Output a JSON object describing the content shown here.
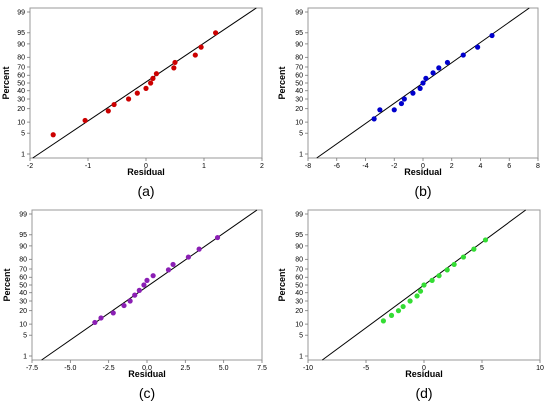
{
  "chart_data": [
    {
      "type": "scatter",
      "panel_label": "(a)",
      "color": "#cc0000",
      "xlabel": "Residual",
      "ylabel": "Percent",
      "xlim": [
        -2,
        2
      ],
      "x_ticks": [
        -2,
        -1,
        0,
        1,
        2
      ],
      "x_tick_labels": [
        "-2",
        "-1",
        "0",
        "1",
        "2"
      ],
      "y_ticks": [
        1,
        5,
        10,
        20,
        30,
        40,
        50,
        60,
        70,
        80,
        90,
        95,
        99
      ],
      "y_tick_labels": [
        "1",
        "5",
        "10",
        "20",
        "30",
        "40",
        "50",
        "60",
        "70",
        "80",
        "90",
        "95",
        "99"
      ],
      "y_scale": "normal-probability",
      "fit_line": {
        "percent_low": 1,
        "x_low": -1.85,
        "percent_high": 99,
        "x_high": 1.8
      },
      "points": [
        {
          "x": -1.6,
          "y": 4.5
        },
        {
          "x": -1.05,
          "y": 11
        },
        {
          "x": -0.65,
          "y": 18
        },
        {
          "x": -0.55,
          "y": 24
        },
        {
          "x": -0.3,
          "y": 30
        },
        {
          "x": -0.15,
          "y": 37
        },
        {
          "x": 0.0,
          "y": 43
        },
        {
          "x": 0.08,
          "y": 50
        },
        {
          "x": 0.12,
          "y": 56
        },
        {
          "x": 0.18,
          "y": 62
        },
        {
          "x": 0.48,
          "y": 69
        },
        {
          "x": 0.5,
          "y": 75
        },
        {
          "x": 0.85,
          "y": 82
        },
        {
          "x": 0.95,
          "y": 88
        },
        {
          "x": 1.2,
          "y": 95
        }
      ]
    },
    {
      "type": "scatter",
      "panel_label": "(b)",
      "color": "#0000cc",
      "xlabel": "Residual",
      "ylabel": "Percent",
      "xlim": [
        -8,
        8
      ],
      "x_ticks": [
        -8,
        -6,
        -4,
        -2,
        0,
        2,
        4,
        6,
        8
      ],
      "x_tick_labels": [
        "-8",
        "-6",
        "-4",
        "-2",
        "0",
        "2",
        "4",
        "6",
        "8"
      ],
      "y_ticks": [
        1,
        5,
        10,
        20,
        30,
        40,
        50,
        60,
        70,
        80,
        90,
        95,
        99
      ],
      "y_tick_labels": [
        "1",
        "5",
        "10",
        "20",
        "30",
        "40",
        "50",
        "60",
        "70",
        "80",
        "90",
        "95",
        "99"
      ],
      "y_scale": "normal-probability",
      "fit_line": {
        "percent_low": 1,
        "x_low": -7.0,
        "percent_high": 99,
        "x_high": 7.0
      },
      "points": [
        {
          "x": -3.4,
          "y": 12
        },
        {
          "x": -3.0,
          "y": 19
        },
        {
          "x": -2.0,
          "y": 19
        },
        {
          "x": -1.5,
          "y": 25
        },
        {
          "x": -1.3,
          "y": 30
        },
        {
          "x": -0.7,
          "y": 37
        },
        {
          "x": -0.2,
          "y": 43
        },
        {
          "x": 0.0,
          "y": 50
        },
        {
          "x": 0.2,
          "y": 56
        },
        {
          "x": 0.7,
          "y": 63
        },
        {
          "x": 1.1,
          "y": 69
        },
        {
          "x": 1.7,
          "y": 75
        },
        {
          "x": 2.8,
          "y": 82
        },
        {
          "x": 3.8,
          "y": 88
        },
        {
          "x": 4.8,
          "y": 94
        }
      ]
    },
    {
      "type": "scatter",
      "panel_label": "(c)",
      "color": "#8b1fb4",
      "xlabel": "Residual",
      "ylabel": "Percent",
      "xlim": [
        -7.5,
        7.5
      ],
      "x_ticks": [
        -7.5,
        -5.0,
        -2.5,
        0.0,
        2.5,
        5.0,
        7.5
      ],
      "x_tick_labels": [
        "-7.5",
        "-5.0",
        "-2.5",
        "0.0",
        "2.5",
        "5.0",
        "7.5"
      ],
      "y_ticks": [
        1,
        5,
        10,
        20,
        30,
        40,
        50,
        60,
        70,
        80,
        90,
        95,
        99
      ],
      "y_tick_labels": [
        "1",
        "5",
        "10",
        "20",
        "30",
        "40",
        "50",
        "60",
        "70",
        "80",
        "90",
        "95",
        "99"
      ],
      "y_scale": "normal-probability",
      "fit_line": {
        "percent_low": 1,
        "x_low": -6.5,
        "percent_high": 99,
        "x_high": 6.8
      },
      "points": [
        {
          "x": -3.4,
          "y": 11
        },
        {
          "x": -3.0,
          "y": 14
        },
        {
          "x": -2.2,
          "y": 18
        },
        {
          "x": -1.5,
          "y": 25
        },
        {
          "x": -1.1,
          "y": 30
        },
        {
          "x": -0.8,
          "y": 37
        },
        {
          "x": -0.5,
          "y": 43
        },
        {
          "x": -0.2,
          "y": 50
        },
        {
          "x": 0.0,
          "y": 56
        },
        {
          "x": 0.4,
          "y": 62
        },
        {
          "x": 1.4,
          "y": 69
        },
        {
          "x": 1.7,
          "y": 75
        },
        {
          "x": 2.7,
          "y": 82
        },
        {
          "x": 3.4,
          "y": 88
        },
        {
          "x": 4.6,
          "y": 94
        }
      ]
    },
    {
      "type": "scatter",
      "panel_label": "(d)",
      "color": "#33dd33",
      "xlabel": "Residual",
      "ylabel": "Percent",
      "xlim": [
        -10,
        10
      ],
      "x_ticks": [
        -10,
        -5,
        0,
        5,
        10
      ],
      "x_tick_labels": [
        "-10",
        "-5",
        "0",
        "5",
        "10"
      ],
      "y_ticks": [
        1,
        5,
        10,
        20,
        30,
        40,
        50,
        60,
        70,
        80,
        90,
        95,
        99
      ],
      "y_tick_labels": [
        "1",
        "5",
        "10",
        "20",
        "30",
        "40",
        "50",
        "60",
        "70",
        "80",
        "90",
        "95",
        "99"
      ],
      "y_scale": "normal-probability",
      "fit_line": {
        "percent_low": 1,
        "x_low": -8.3,
        "percent_high": 99,
        "x_high": 8.3
      },
      "points": [
        {
          "x": -3.5,
          "y": 12
        },
        {
          "x": -2.8,
          "y": 16
        },
        {
          "x": -2.2,
          "y": 20
        },
        {
          "x": -1.8,
          "y": 24
        },
        {
          "x": -1.2,
          "y": 30
        },
        {
          "x": -0.6,
          "y": 36
        },
        {
          "x": -0.3,
          "y": 42
        },
        {
          "x": 0.0,
          "y": 50
        },
        {
          "x": 0.7,
          "y": 56
        },
        {
          "x": 1.3,
          "y": 62
        },
        {
          "x": 2.0,
          "y": 69
        },
        {
          "x": 2.6,
          "y": 75
        },
        {
          "x": 3.4,
          "y": 82
        },
        {
          "x": 4.3,
          "y": 88
        },
        {
          "x": 5.3,
          "y": 93
        }
      ]
    }
  ]
}
